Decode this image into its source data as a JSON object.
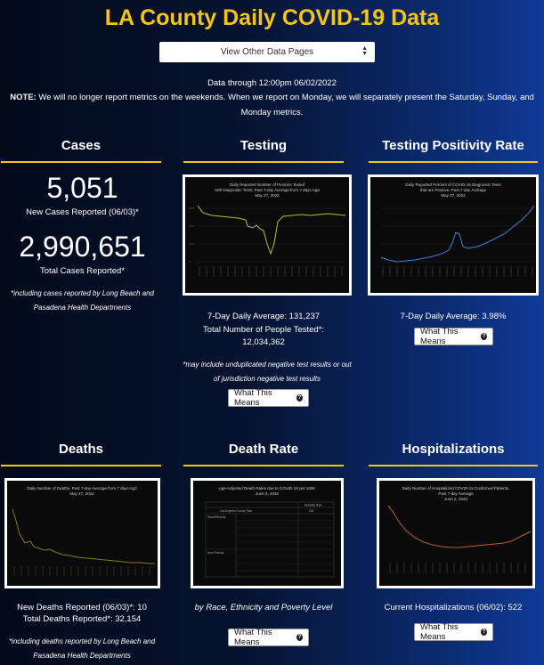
{
  "header": {
    "title": "LA County Daily COVID-19 Data"
  },
  "dropdown": {
    "selected": "View Other Data Pages"
  },
  "data_through": "Data through 12:00pm 06/02/2022",
  "note": {
    "label": "NOTE:",
    "text": " We will no longer report metrics on the weekends. When we report on Monday, we will separately present the Saturday, Sunday, and Monday metrics."
  },
  "cases": {
    "title": "Cases",
    "new_value": "5,051",
    "new_label": "New Cases Reported (06/03)*",
    "total_value": "2,990,651",
    "total_label": "Total Cases Reported*",
    "footnote": "*including cases reported by Long Beach and Pasadena Health Departments"
  },
  "testing": {
    "title": "Testing",
    "chart_title": "Daily Reported Number of Persons Tested with Diagnostic Tests, Past 7-day Average from 7 days Ago May 27, 2022",
    "avg_line": "7-Day Daily Average: 131,237",
    "total_line1": "Total Number of People Tested*:",
    "total_line2": "12,034,362",
    "footnote": "*may include unduplicated negative test results or out of jurisdiction negative test results",
    "button": "What This Means"
  },
  "positivity": {
    "title": "Testing Positivity Rate",
    "chart_title": "Daily Reported Percent of COVID-19 Diagnostic Tests that are Positive, Past 7-day Average May 27, 2022",
    "avg_line": "7-Day Daily Average: 3.98%",
    "button": "What This Means"
  },
  "deaths": {
    "title": "Deaths",
    "chart_title": "Daily Number of Deaths, Past 7-day Average from 7 days Ago May 27, 2022",
    "new_line": "New Deaths Reported (06/03)*: 10",
    "total_line": "Total Deaths Reported*: 32,154",
    "footnote": "*including deaths reported by Long Beach and Pasadena Health Departments"
  },
  "death_rate": {
    "title": "Death Rate",
    "table_title": "Age-Adjusted Death Rates due to COVID-19 per 100K June 2, 2022",
    "subtitle": "by Race, Ethnicity and Poverty Level",
    "button": "What This Means"
  },
  "hospitalizations": {
    "title": "Hospitalizations",
    "chart_title": "Daily Number of Hospitalized COVID-19 Confirmed Patients, Past 7-day Average June 2, 2022",
    "current_line": "Current Hospitalizations (06/02): 522",
    "button": "What This Means"
  },
  "colors": {
    "accent": "#f6c513",
    "testing_line": "#b5c22a",
    "positivity_line": "#3b7fd6",
    "deaths_line": "#8a7a14",
    "hosp_line": "#b4602a"
  },
  "icons": [
    "question-circle-icon",
    "chevron-updown-icon"
  ]
}
